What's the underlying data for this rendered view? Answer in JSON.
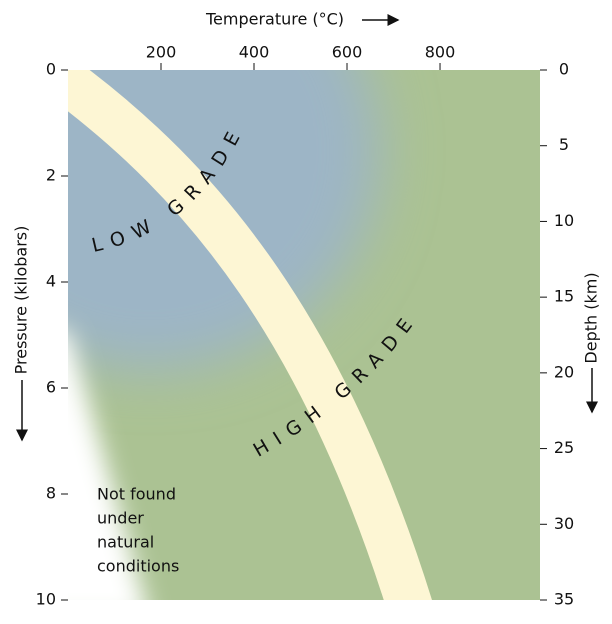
{
  "title": "Temperature (°C)",
  "temperature_axis": {
    "ticks": [
      200,
      400,
      600,
      800
    ],
    "lim": [
      0,
      1015
    ]
  },
  "pressure_axis": {
    "label": "Pressure (kilobars)",
    "ticks": [
      0,
      2,
      4,
      6,
      8,
      10
    ],
    "lim": [
      0,
      10
    ]
  },
  "depth_axis": {
    "label": "Depth (km)",
    "ticks": [
      0,
      5,
      10,
      15,
      20,
      25,
      30,
      35
    ],
    "lim": [
      0,
      35
    ]
  },
  "regions": {
    "low": "LOW GRADE",
    "high": "HIGH GRADE",
    "excluded": [
      "Not found",
      "under",
      "natural",
      "conditions"
    ]
  }
}
